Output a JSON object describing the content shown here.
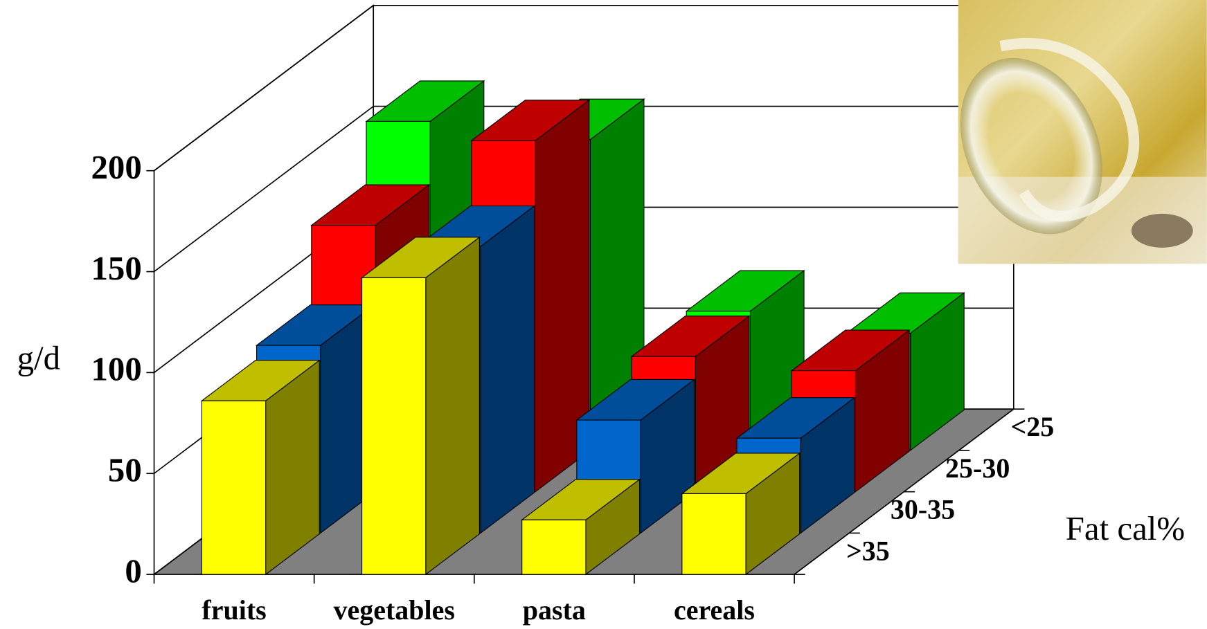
{
  "chart_data": {
    "type": "bar3d",
    "y_label": "g/d",
    "z_label": "Fat cal%",
    "categories": [
      "fruits",
      "vegetables",
      "pasta",
      "cereals"
    ],
    "series": [
      {
        "name": ">35",
        "color": "#ffff00",
        "values": [
          86,
          147,
          27,
          40
        ]
      },
      {
        "name": "30-35",
        "color": "#0066cc",
        "values": [
          93,
          142,
          56,
          47
        ]
      },
      {
        "name": "25-30",
        "color": "#ff0000",
        "values": [
          132,
          174,
          67,
          60
        ]
      },
      {
        "name": "<25",
        "color": "#00ff00",
        "values": [
          163,
          154,
          69,
          58
        ]
      }
    ],
    "ylim": [
      0,
      200
    ],
    "yticks": [
      0,
      50,
      100,
      150,
      200
    ],
    "grid": true
  }
}
